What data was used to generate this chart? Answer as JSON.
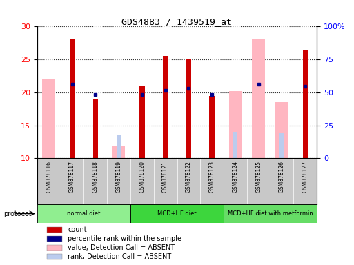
{
  "title": "GDS4883 / 1439519_at",
  "samples": [
    "GSM878116",
    "GSM878117",
    "GSM878118",
    "GSM878119",
    "GSM878120",
    "GSM878121",
    "GSM878122",
    "GSM878123",
    "GSM878124",
    "GSM878125",
    "GSM878126",
    "GSM878127"
  ],
  "count_values": [
    null,
    28.0,
    19.0,
    null,
    21.0,
    25.5,
    25.0,
    19.5,
    null,
    null,
    null,
    26.5
  ],
  "percentile_values": [
    null,
    21.2,
    19.7,
    null,
    19.7,
    20.3,
    20.6,
    19.7,
    null,
    21.2,
    null,
    20.9
  ],
  "absent_value_values": [
    22.0,
    null,
    null,
    11.8,
    null,
    null,
    null,
    null,
    20.2,
    28.0,
    18.5,
    null
  ],
  "absent_rank_values": [
    null,
    null,
    null,
    17.3,
    null,
    null,
    null,
    null,
    20.2,
    null,
    19.4,
    null
  ],
  "ylim": [
    10,
    30
  ],
  "yticks_left": [
    10,
    15,
    20,
    25,
    30
  ],
  "yticks_right_vals": [
    0,
    25,
    50,
    75,
    100
  ],
  "yticks_right_labels": [
    "0",
    "25",
    "50",
    "75",
    "100%"
  ],
  "right_ylim": [
    0,
    100
  ],
  "protocol_groups": [
    {
      "label": "normal diet",
      "start": 0,
      "end": 3,
      "color": "#90EE90"
    },
    {
      "label": "MCD+HF diet",
      "start": 4,
      "end": 7,
      "color": "#3DD63D"
    },
    {
      "label": "MCD+HF diet with metformin",
      "start": 8,
      "end": 11,
      "color": "#66DD66"
    }
  ],
  "colors": {
    "count": "#CC0000",
    "percentile": "#00008B",
    "absent_value": "#FFB6C1",
    "absent_rank": "#BBCCEE",
    "bg": "#FFFFFF",
    "plot_bg": "#FFFFFF",
    "tick_bg": "#C8C8C8"
  },
  "legend": [
    {
      "label": "count",
      "color": "#CC0000"
    },
    {
      "label": "percentile rank within the sample",
      "color": "#00008B"
    },
    {
      "label": "value, Detection Call = ABSENT",
      "color": "#FFB6C1"
    },
    {
      "label": "rank, Detection Call = ABSENT",
      "color": "#BBCCEE"
    }
  ]
}
